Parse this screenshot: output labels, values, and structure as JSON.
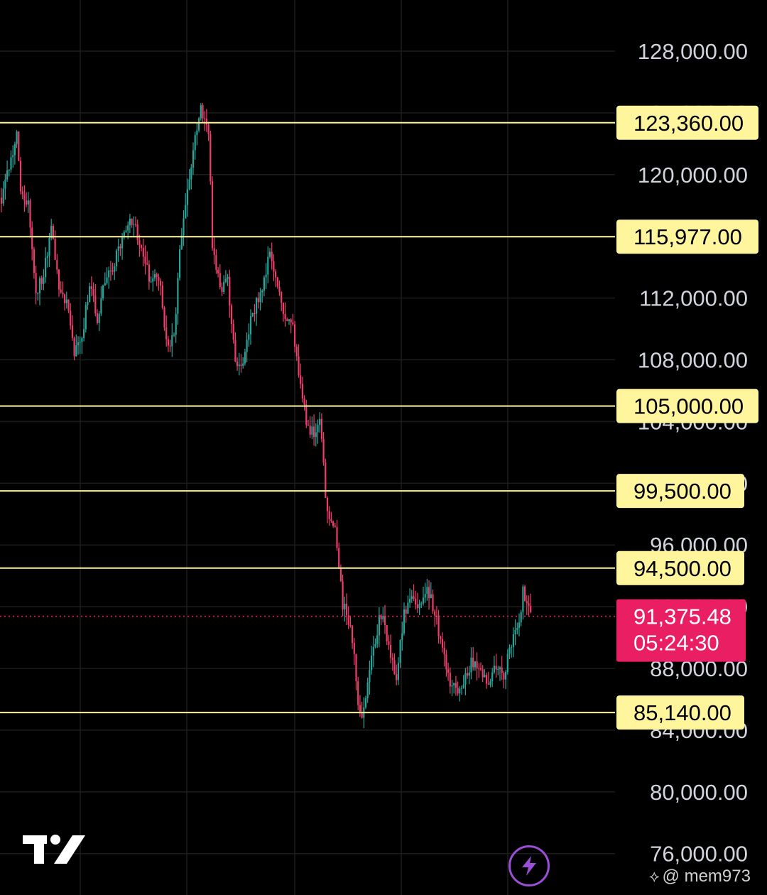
{
  "chart_data": {
    "type": "candlestick",
    "y_axis": {
      "ticks": [
        128000,
        124000,
        120000,
        116000,
        112000,
        108000,
        104000,
        100000,
        96000,
        92000,
        88000,
        84000,
        80000,
        76000
      ],
      "tick_labels": [
        "128,000.00",
        "124,000.00",
        "120,000.00",
        "116,000.00",
        "112,000.00",
        "108,000.00",
        "104,000.00",
        "100,000.00",
        "96,000.00",
        "92,000.00",
        "88,000.00",
        "84,000.00",
        "80,000.00",
        "76,000.00"
      ],
      "range": [
        75500,
        130500
      ],
      "side": "right"
    },
    "grid": true,
    "horizontal_levels": [
      {
        "value": 123360,
        "label": "123,360.00",
        "color": "#fff59d"
      },
      {
        "value": 115977,
        "label": "115,977.00",
        "color": "#fff59d"
      },
      {
        "value": 105000,
        "label": "105,000.00",
        "color": "#fff59d"
      },
      {
        "value": 99500,
        "label": "99,500.00",
        "color": "#fff59d"
      },
      {
        "value": 94500,
        "label": "94,500.00",
        "color": "#fff59d"
      },
      {
        "value": 85140,
        "label": "85,140.00",
        "color": "#fff59d"
      }
    ],
    "current_price": {
      "value": 91375.48,
      "label": "91,375.48",
      "countdown": "05:24:30",
      "color": "#e91e63"
    },
    "colors": {
      "up": "#26a69a",
      "down": "#ef3d6b",
      "background": "#000000",
      "grid": "#1c1c1c",
      "axis_text": "#d1d4dc"
    },
    "anchors": [
      [
        0,
        118500
      ],
      [
        4,
        120500
      ],
      [
        8,
        122500
      ],
      [
        10,
        119000
      ],
      [
        14,
        118000
      ],
      [
        18,
        112500
      ],
      [
        22,
        113500
      ],
      [
        26,
        116500
      ],
      [
        30,
        113000
      ],
      [
        34,
        111500
      ],
      [
        38,
        108500
      ],
      [
        42,
        109500
      ],
      [
        46,
        113000
      ],
      [
        50,
        110500
      ],
      [
        54,
        113000
      ],
      [
        58,
        114000
      ],
      [
        62,
        115500
      ],
      [
        66,
        117000
      ],
      [
        70,
        116500
      ],
      [
        74,
        114500
      ],
      [
        78,
        113000
      ],
      [
        82,
        113500
      ],
      [
        86,
        109000
      ],
      [
        90,
        109500
      ],
      [
        94,
        116500
      ],
      [
        98,
        119500
      ],
      [
        102,
        123000
      ],
      [
        104,
        124500
      ],
      [
        106,
        123500
      ],
      [
        108,
        123000
      ],
      [
        110,
        115500
      ],
      [
        114,
        112500
      ],
      [
        118,
        113000
      ],
      [
        122,
        108000
      ],
      [
        126,
        107500
      ],
      [
        130,
        110500
      ],
      [
        134,
        112000
      ],
      [
        138,
        113500
      ],
      [
        140,
        115000
      ],
      [
        144,
        112500
      ],
      [
        148,
        110500
      ],
      [
        152,
        110000
      ],
      [
        156,
        106000
      ],
      [
        160,
        103500
      ],
      [
        164,
        103000
      ],
      [
        166,
        104000
      ],
      [
        170,
        98000
      ],
      [
        174,
        97000
      ],
      [
        178,
        92000
      ],
      [
        182,
        91000
      ],
      [
        186,
        86000
      ],
      [
        188,
        84500
      ],
      [
        190,
        86000
      ],
      [
        194,
        89500
      ],
      [
        198,
        91500
      ],
      [
        202,
        89500
      ],
      [
        206,
        87500
      ],
      [
        210,
        91500
      ],
      [
        214,
        93000
      ],
      [
        218,
        92000
      ],
      [
        222,
        93500
      ],
      [
        226,
        91500
      ],
      [
        230,
        89000
      ],
      [
        234,
        87000
      ],
      [
        238,
        86500
      ],
      [
        242,
        87500
      ],
      [
        246,
        88500
      ],
      [
        250,
        87500
      ],
      [
        254,
        87200
      ],
      [
        258,
        88000
      ],
      [
        262,
        87500
      ],
      [
        266,
        89500
      ],
      [
        270,
        91000
      ],
      [
        272,
        93000
      ],
      [
        274,
        92500
      ],
      [
        276,
        91300
      ]
    ],
    "n_candles": 277,
    "seed": 97
  },
  "watermark": {
    "icon": "binance-square-icon",
    "handle": "@ mem973"
  },
  "logo": {
    "name": "tradingview-logo"
  },
  "bolt_button": {
    "icon": "lightning-bolt-icon"
  }
}
